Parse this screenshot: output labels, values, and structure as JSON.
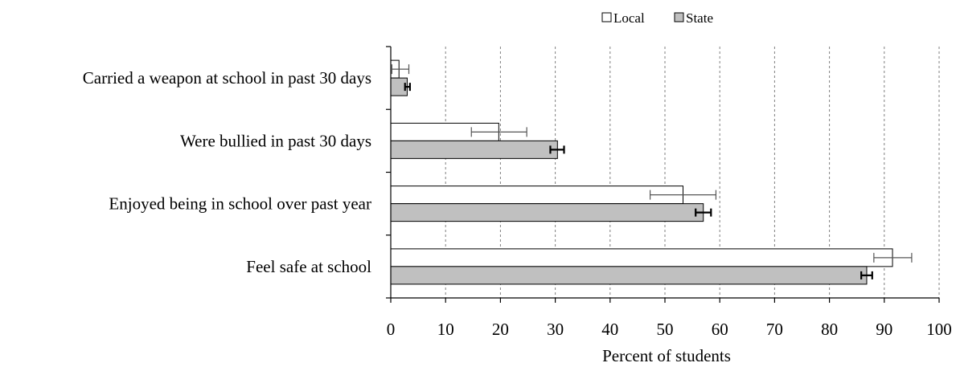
{
  "chart_data": {
    "type": "bar",
    "orientation": "horizontal",
    "categories": [
      "Carried a weapon at school in past 30 days",
      "Were bullied in past 30 days",
      "Enjoyed being in school over past year",
      "Feel safe at school"
    ],
    "series": [
      {
        "name": "Local",
        "color": "#ffffff",
        "values": [
          1.5,
          19.7,
          53.3,
          91.5
        ],
        "error_low": [
          0.2,
          14.7,
          47.3,
          88.1
        ],
        "error_high": [
          3.3,
          24.8,
          59.3,
          95.0
        ]
      },
      {
        "name": "State",
        "color": "#c0c0c0",
        "values": [
          3.0,
          30.4,
          57.0,
          86.8
        ],
        "error_low": [
          2.6,
          29.1,
          55.6,
          85.8
        ],
        "error_high": [
          3.5,
          31.6,
          58.4,
          87.8
        ]
      }
    ],
    "xlabel": "Percent of students",
    "xlim": [
      0,
      100
    ],
    "xticks": [
      "0",
      "10",
      "20",
      "30",
      "40",
      "50",
      "60",
      "70",
      "80",
      "90",
      "100"
    ],
    "grid": "vertical dashed",
    "legend_position": "top-right"
  }
}
